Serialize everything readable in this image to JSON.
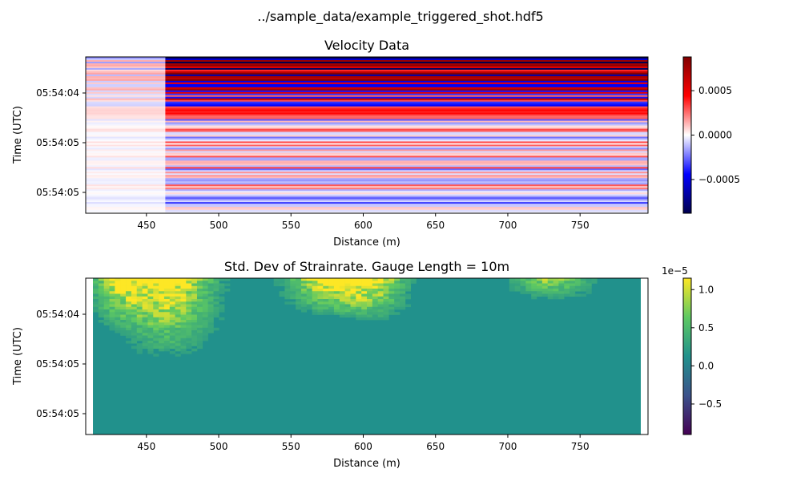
{
  "figure": {
    "suptitle": "../sample_data/example_triggered_shot.hdf5"
  },
  "chart_data": [
    {
      "type": "heatmap",
      "title": "Velocity Data",
      "xlabel": "Distance (m)",
      "ylabel": "Time (UTC)",
      "xlim": [
        408,
        797
      ],
      "x_ticks": [
        450,
        500,
        550,
        600,
        650,
        700,
        750
      ],
      "y_tick_labels": [
        "05:54:04",
        "05:54:05",
        "05:54:05"
      ],
      "colormap": "seismic",
      "colorbar": {
        "range": [
          -0.00088,
          0.00088
        ],
        "ticks": [
          0.0005,
          0.0,
          -0.0005
        ],
        "tick_labels": [
          "0.0005",
          "0.0000",
          "−0.0005"
        ]
      },
      "colors": {
        "negative": "#00004d",
        "zero": "#ffffff",
        "positive": "#800000"
      },
      "grid": false,
      "legend": "none"
    },
    {
      "type": "heatmap",
      "title": "Std. Dev of Strainrate. Gauge Length = 10m",
      "xlabel": "Distance (m)",
      "ylabel": "Time (UTC)",
      "xlim": [
        408,
        797
      ],
      "x_ticks": [
        450,
        500,
        550,
        600,
        650,
        700,
        750
      ],
      "y_tick_labels": [
        "05:54:04",
        "05:54:05",
        "05:54:05"
      ],
      "colormap": "viridis",
      "colorbar": {
        "range": [
          -0.9,
          1.15
        ],
        "ticks": [
          1.0,
          0.5,
          0.0,
          -0.5
        ],
        "tick_labels": [
          "1.0",
          "0.5",
          "0.0",
          "−0.5"
        ],
        "offset_label": "1e−5"
      },
      "colors": {
        "background_level": "#21918c",
        "high": "#fde725",
        "low": "#440154"
      },
      "grid": false,
      "legend": "none"
    }
  ]
}
